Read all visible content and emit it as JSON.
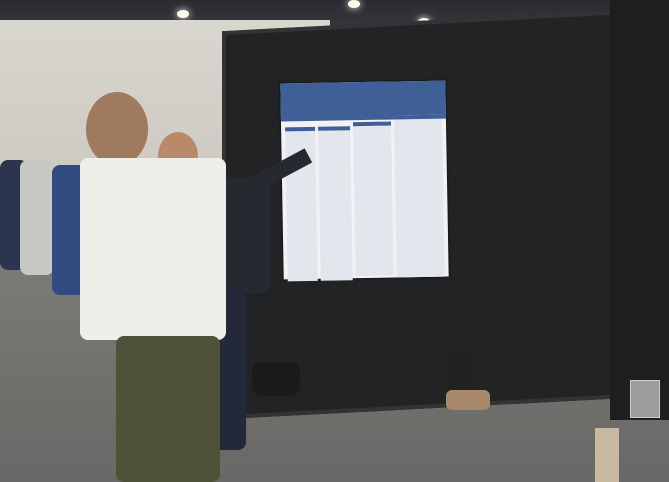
{
  "scene": {
    "description_free": true,
    "colors": {
      "board": "#222324",
      "poster_header": "#3f5f97",
      "floor": "#7d7b78",
      "wall": "#d9d6cf"
    }
  }
}
